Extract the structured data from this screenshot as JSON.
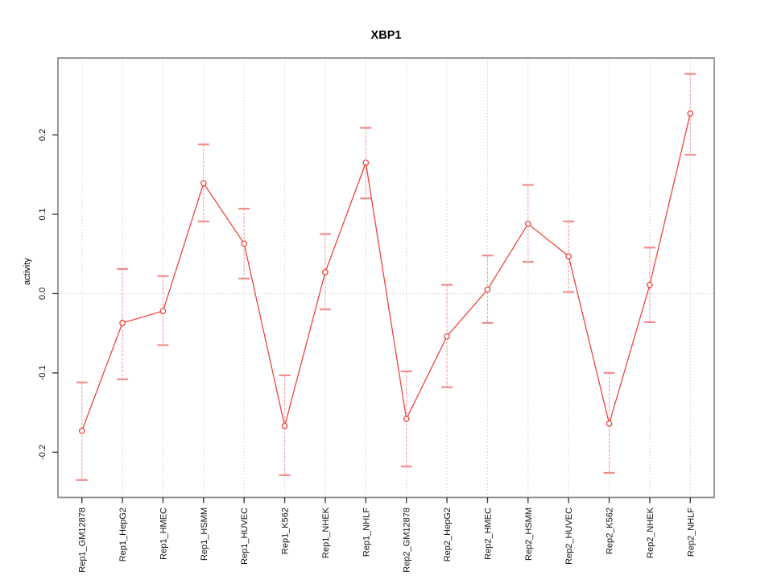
{
  "chart_data": {
    "type": "line",
    "title": "XBP1",
    "xlabel": "",
    "ylabel": "activity",
    "legend": "none",
    "grid": "vertical dotted gridline at every category; horizontal dotted line at y=0 only",
    "categories": [
      "Rep1_GM12878",
      "Rep1_HepG2",
      "Rep1_HMEC",
      "Rep1_HSMM",
      "Rep1_HUVEC",
      "Rep1_K562",
      "Rep1_NHEK",
      "Rep1_NHLF",
      "Rep2_GM12878",
      "Rep2_HepG2",
      "Rep2_HMEC",
      "Rep2_HSMM",
      "Rep2_HUVEC",
      "Rep2_K562",
      "Rep2_NHEK",
      "Rep2_NHLF"
    ],
    "series": [
      {
        "name": "activity",
        "values": [
          -0.173,
          -0.037,
          -0.022,
          0.139,
          0.063,
          -0.167,
          0.027,
          0.165,
          -0.158,
          -0.054,
          0.005,
          0.088,
          0.047,
          -0.164,
          0.011,
          0.227
        ],
        "error_high": [
          -0.112,
          0.031,
          0.022,
          0.188,
          0.107,
          -0.103,
          0.075,
          0.209,
          -0.098,
          0.011,
          0.048,
          0.137,
          0.091,
          -0.1,
          0.058,
          0.277
        ],
        "error_low": [
          -0.235,
          -0.108,
          -0.065,
          0.091,
          0.019,
          -0.229,
          -0.02,
          0.12,
          -0.218,
          -0.118,
          -0.037,
          0.04,
          0.002,
          -0.226,
          -0.036,
          0.175
        ]
      }
    ],
    "yticks": [
      -0.2,
      -0.1,
      0.0,
      0.1,
      0.2
    ],
    "ylim": [
      -0.257,
      0.297
    ],
    "colors": {
      "line": "#ee453f",
      "point_fill": "#ffffff",
      "error_line": "#f8a8a8",
      "error_cap": "#f28e8e",
      "grid": "#dcdcdc",
      "frame": "#8c8c8c",
      "tick": "#3a3a3a",
      "text": "#111111",
      "background": "#ffffff"
    }
  }
}
